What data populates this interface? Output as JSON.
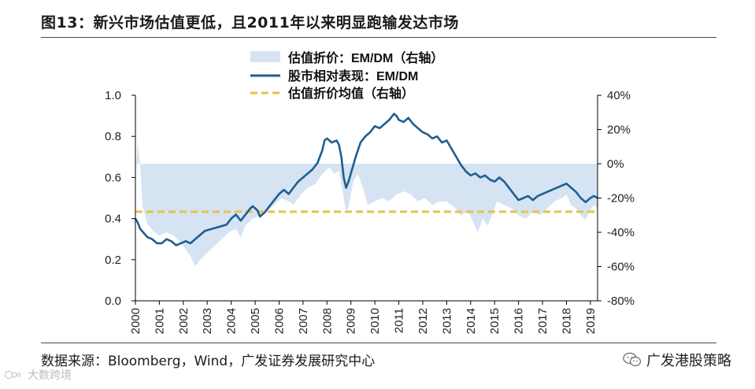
{
  "title": "图13：新兴市场估值更低，且2011年以来明显跑输发达市场",
  "source": "数据来源：Bloomberg，Wind，广发证券发展研究中心",
  "brand": "广发港股策略",
  "watermark": "大数跨境",
  "colors": {
    "valuation_fill": "#d6e3f3",
    "performance_line": "#1d5f92",
    "average_line": "#e6c24a",
    "axis": "#000000"
  },
  "chart_data": {
    "type": "line",
    "legend_position": "top",
    "grid": false,
    "x_tick_labels": [
      "2000",
      "2001",
      "2002",
      "2003",
      "2004",
      "2005",
      "2006",
      "2007",
      "2008",
      "2009",
      "2010",
      "2011",
      "2012",
      "2013",
      "2014",
      "2015",
      "2016",
      "2017",
      "2018",
      "2019"
    ],
    "x_range": [
      2000.0,
      2019.3
    ],
    "left_axis": {
      "range": [
        0.0,
        1.0
      ],
      "ticks": [
        "0.0",
        "0.2",
        "0.4",
        "0.6",
        "0.8",
        "1.0"
      ]
    },
    "right_axis": {
      "range": [
        -80,
        40
      ],
      "ticks": [
        "40%",
        "20%",
        "0%",
        "-20%",
        "-40%",
        "-60%",
        "-80%"
      ]
    },
    "series": [
      {
        "name": "估值折价：EM/DM（右轴）",
        "type": "area",
        "axis": "right",
        "unit": "%",
        "baseline": 0,
        "points": [
          [
            2000.0,
            -10
          ],
          [
            2000.1,
            13
          ],
          [
            2000.2,
            -2
          ],
          [
            2000.3,
            -25
          ],
          [
            2000.5,
            -35
          ],
          [
            2000.8,
            -40
          ],
          [
            2001.0,
            -42
          ],
          [
            2001.3,
            -40
          ],
          [
            2001.6,
            -42
          ],
          [
            2001.9,
            -46
          ],
          [
            2002.1,
            -50
          ],
          [
            2002.3,
            -54
          ],
          [
            2002.5,
            -60
          ],
          [
            2002.7,
            -56
          ],
          [
            2003.0,
            -52
          ],
          [
            2003.3,
            -48
          ],
          [
            2003.6,
            -44
          ],
          [
            2003.9,
            -40
          ],
          [
            2004.2,
            -38
          ],
          [
            2004.4,
            -43
          ],
          [
            2004.6,
            -36
          ],
          [
            2004.9,
            -32
          ],
          [
            2005.2,
            -30
          ],
          [
            2005.5,
            -27
          ],
          [
            2005.8,
            -24
          ],
          [
            2006.1,
            -20
          ],
          [
            2006.4,
            -22
          ],
          [
            2006.6,
            -24
          ],
          [
            2006.9,
            -18
          ],
          [
            2007.2,
            -14
          ],
          [
            2007.5,
            -12
          ],
          [
            2007.8,
            -6
          ],
          [
            2008.1,
            -2
          ],
          [
            2008.3,
            -6
          ],
          [
            2008.5,
            -4
          ],
          [
            2008.7,
            -20
          ],
          [
            2008.8,
            -28
          ],
          [
            2008.9,
            -25
          ],
          [
            2009.1,
            -10
          ],
          [
            2009.3,
            -6
          ],
          [
            2009.5,
            -14
          ],
          [
            2009.7,
            -24
          ],
          [
            2010.0,
            -22
          ],
          [
            2010.3,
            -20
          ],
          [
            2010.6,
            -22
          ],
          [
            2010.9,
            -18
          ],
          [
            2011.2,
            -16
          ],
          [
            2011.5,
            -18
          ],
          [
            2011.8,
            -22
          ],
          [
            2012.1,
            -20
          ],
          [
            2012.4,
            -24
          ],
          [
            2012.7,
            -22
          ],
          [
            2013.0,
            -22
          ],
          [
            2013.3,
            -25
          ],
          [
            2013.6,
            -30
          ],
          [
            2013.9,
            -28
          ],
          [
            2014.1,
            -34
          ],
          [
            2014.3,
            -40
          ],
          [
            2014.5,
            -32
          ],
          [
            2014.7,
            -36
          ],
          [
            2014.9,
            -30
          ],
          [
            2015.1,
            -22
          ],
          [
            2015.4,
            -24
          ],
          [
            2015.7,
            -26
          ],
          [
            2016.0,
            -30
          ],
          [
            2016.3,
            -32
          ],
          [
            2016.6,
            -28
          ],
          [
            2016.9,
            -30
          ],
          [
            2017.2,
            -26
          ],
          [
            2017.5,
            -22
          ],
          [
            2017.8,
            -20
          ],
          [
            2018.0,
            -18
          ],
          [
            2018.2,
            -24
          ],
          [
            2018.4,
            -26
          ],
          [
            2018.6,
            -30
          ],
          [
            2018.8,
            -33
          ],
          [
            2019.0,
            -27
          ],
          [
            2019.15,
            -24
          ],
          [
            2019.3,
            -26
          ]
        ]
      },
      {
        "name": "股市相对表现：EM/DM",
        "type": "line",
        "axis": "left",
        "points": [
          [
            2000.0,
            0.4
          ],
          [
            2000.1,
            0.38
          ],
          [
            2000.2,
            0.35
          ],
          [
            2000.35,
            0.33
          ],
          [
            2000.5,
            0.31
          ],
          [
            2000.7,
            0.3
          ],
          [
            2000.9,
            0.28
          ],
          [
            2001.1,
            0.28
          ],
          [
            2001.3,
            0.3
          ],
          [
            2001.5,
            0.29
          ],
          [
            2001.7,
            0.27
          ],
          [
            2001.9,
            0.28
          ],
          [
            2002.1,
            0.29
          ],
          [
            2002.3,
            0.28
          ],
          [
            2002.5,
            0.3
          ],
          [
            2002.7,
            0.32
          ],
          [
            2002.9,
            0.34
          ],
          [
            2003.2,
            0.35
          ],
          [
            2003.5,
            0.36
          ],
          [
            2003.8,
            0.37
          ],
          [
            2004.0,
            0.4
          ],
          [
            2004.2,
            0.42
          ],
          [
            2004.4,
            0.39
          ],
          [
            2004.6,
            0.42
          ],
          [
            2004.8,
            0.45
          ],
          [
            2004.9,
            0.46
          ],
          [
            2005.1,
            0.44
          ],
          [
            2005.2,
            0.41
          ],
          [
            2005.4,
            0.43
          ],
          [
            2005.6,
            0.46
          ],
          [
            2005.8,
            0.49
          ],
          [
            2006.0,
            0.52
          ],
          [
            2006.2,
            0.54
          ],
          [
            2006.4,
            0.52
          ],
          [
            2006.6,
            0.55
          ],
          [
            2006.8,
            0.58
          ],
          [
            2007.0,
            0.6
          ],
          [
            2007.2,
            0.62
          ],
          [
            2007.4,
            0.64
          ],
          [
            2007.6,
            0.67
          ],
          [
            2007.8,
            0.73
          ],
          [
            2007.9,
            0.78
          ],
          [
            2008.0,
            0.79
          ],
          [
            2008.2,
            0.77
          ],
          [
            2008.4,
            0.78
          ],
          [
            2008.5,
            0.76
          ],
          [
            2008.6,
            0.7
          ],
          [
            2008.7,
            0.6
          ],
          [
            2008.8,
            0.55
          ],
          [
            2008.9,
            0.58
          ],
          [
            2009.0,
            0.62
          ],
          [
            2009.2,
            0.7
          ],
          [
            2009.4,
            0.77
          ],
          [
            2009.6,
            0.8
          ],
          [
            2009.8,
            0.82
          ],
          [
            2010.0,
            0.85
          ],
          [
            2010.2,
            0.84
          ],
          [
            2010.4,
            0.86
          ],
          [
            2010.6,
            0.88
          ],
          [
            2010.8,
            0.91
          ],
          [
            2010.9,
            0.9
          ],
          [
            2011.0,
            0.88
          ],
          [
            2011.2,
            0.87
          ],
          [
            2011.4,
            0.89
          ],
          [
            2011.6,
            0.86
          ],
          [
            2011.8,
            0.84
          ],
          [
            2012.0,
            0.82
          ],
          [
            2012.2,
            0.81
          ],
          [
            2012.4,
            0.79
          ],
          [
            2012.6,
            0.8
          ],
          [
            2012.8,
            0.77
          ],
          [
            2013.0,
            0.78
          ],
          [
            2013.2,
            0.74
          ],
          [
            2013.4,
            0.7
          ],
          [
            2013.6,
            0.66
          ],
          [
            2013.8,
            0.63
          ],
          [
            2014.0,
            0.61
          ],
          [
            2014.2,
            0.62
          ],
          [
            2014.4,
            0.6
          ],
          [
            2014.6,
            0.61
          ],
          [
            2014.8,
            0.59
          ],
          [
            2015.0,
            0.58
          ],
          [
            2015.2,
            0.6
          ],
          [
            2015.4,
            0.58
          ],
          [
            2015.6,
            0.55
          ],
          [
            2015.8,
            0.52
          ],
          [
            2016.0,
            0.49
          ],
          [
            2016.2,
            0.5
          ],
          [
            2016.4,
            0.51
          ],
          [
            2016.6,
            0.49
          ],
          [
            2016.8,
            0.51
          ],
          [
            2017.0,
            0.52
          ],
          [
            2017.2,
            0.53
          ],
          [
            2017.4,
            0.54
          ],
          [
            2017.6,
            0.55
          ],
          [
            2017.8,
            0.56
          ],
          [
            2018.0,
            0.57
          ],
          [
            2018.2,
            0.55
          ],
          [
            2018.4,
            0.53
          ],
          [
            2018.6,
            0.5
          ],
          [
            2018.8,
            0.48
          ],
          [
            2019.0,
            0.5
          ],
          [
            2019.15,
            0.51
          ],
          [
            2019.3,
            0.5
          ]
        ]
      },
      {
        "name": "估值折价均值（右轴）",
        "type": "line",
        "style": "dashed",
        "axis": "right",
        "unit": "%",
        "value": -28
      }
    ]
  }
}
